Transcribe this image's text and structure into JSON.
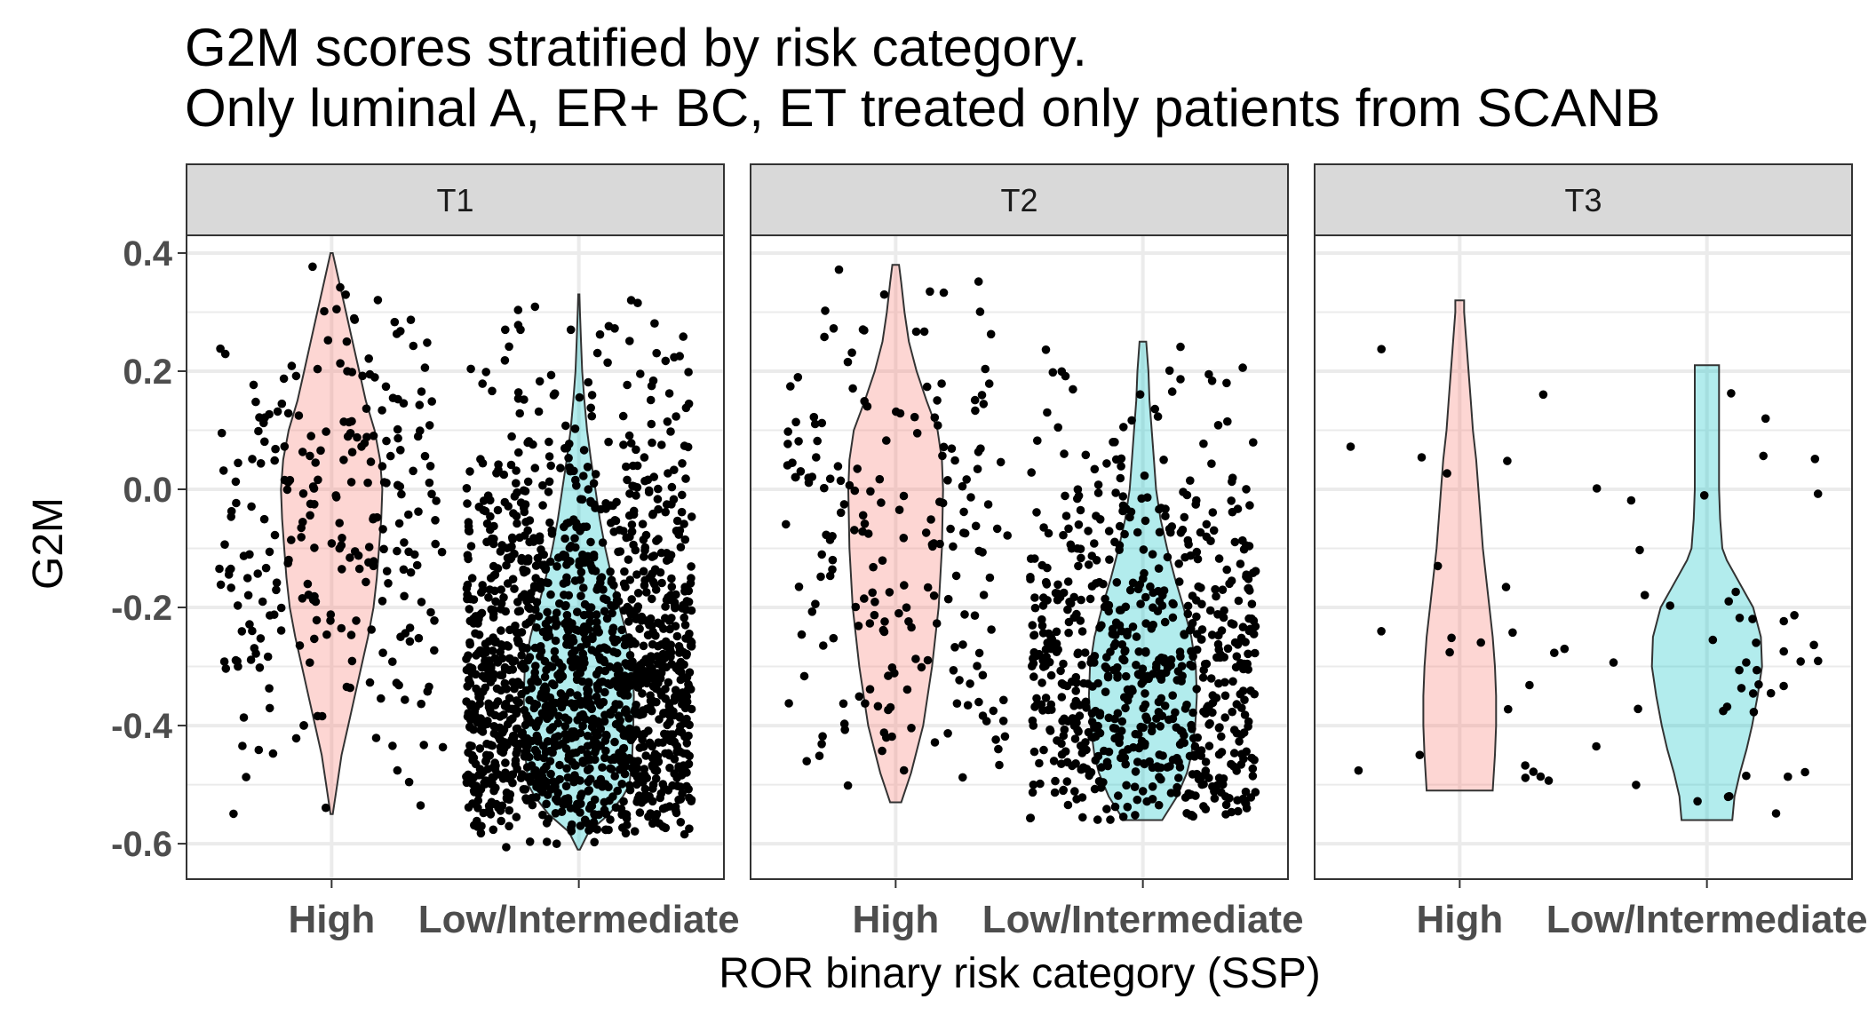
{
  "chart_data": {
    "type": "violin",
    "title_lines": [
      "G2M scores stratified by risk category.",
      "Only luminal A, ER+ BC, ET treated only patients from SCANB"
    ],
    "xlabel": "ROR binary risk category (SSP)",
    "ylabel": "G2M",
    "ylim": [
      -0.66,
      0.43
    ],
    "y_ticks": [
      0.4,
      0.2,
      0.0,
      -0.2,
      -0.4,
      -0.6
    ],
    "y_tick_labels": [
      "0.4",
      "0.2",
      "0.0",
      "-0.2",
      "-0.4",
      "-0.6"
    ],
    "categories": [
      "High",
      "Low/Intermediate"
    ],
    "colors": {
      "High": "#f8766d",
      "Low/Intermediate": "#00bfc4"
    },
    "grid": true,
    "legend": "none",
    "facets": [
      {
        "label": "T1",
        "groups": [
          {
            "name": "High",
            "min": -0.55,
            "max": 0.4,
            "n_points": 260,
            "profile": [
              [
                -0.55,
                0.02
              ],
              [
                -0.5,
                0.1
              ],
              [
                -0.45,
                0.18
              ],
              [
                -0.4,
                0.3
              ],
              [
                -0.35,
                0.42
              ],
              [
                -0.3,
                0.54
              ],
              [
                -0.25,
                0.66
              ],
              [
                -0.2,
                0.76
              ],
              [
                -0.15,
                0.82
              ],
              [
                -0.1,
                0.86
              ],
              [
                -0.05,
                0.9
              ],
              [
                0.0,
                0.92
              ],
              [
                0.05,
                0.88
              ],
              [
                0.1,
                0.78
              ],
              [
                0.15,
                0.62
              ],
              [
                0.2,
                0.5
              ],
              [
                0.25,
                0.38
              ],
              [
                0.3,
                0.26
              ],
              [
                0.35,
                0.14
              ],
              [
                0.4,
                0.02
              ]
            ]
          },
          {
            "name": "Low/Intermediate",
            "min": -0.61,
            "max": 0.33,
            "n_points": 1500,
            "profile": [
              [
                -0.61,
                0.02
              ],
              [
                -0.58,
                0.18
              ],
              [
                -0.55,
                0.55
              ],
              [
                -0.52,
                0.8
              ],
              [
                -0.5,
                0.92
              ],
              [
                -0.45,
                0.97
              ],
              [
                -0.4,
                0.99
              ],
              [
                -0.35,
                1.0
              ],
              [
                -0.3,
                0.98
              ],
              [
                -0.25,
                0.88
              ],
              [
                -0.2,
                0.74
              ],
              [
                -0.15,
                0.6
              ],
              [
                -0.1,
                0.48
              ],
              [
                -0.05,
                0.38
              ],
              [
                0.0,
                0.3
              ],
              [
                0.05,
                0.22
              ],
              [
                0.1,
                0.15
              ],
              [
                0.15,
                0.1
              ],
              [
                0.2,
                0.06
              ],
              [
                0.25,
                0.04
              ],
              [
                0.3,
                0.02
              ],
              [
                0.33,
                0.01
              ]
            ]
          }
        ]
      },
      {
        "label": "T2",
        "groups": [
          {
            "name": "High",
            "min": -0.53,
            "max": 0.38,
            "n_points": 200,
            "profile": [
              [
                -0.53,
                0.1
              ],
              [
                -0.48,
                0.28
              ],
              [
                -0.4,
                0.5
              ],
              [
                -0.3,
                0.66
              ],
              [
                -0.2,
                0.78
              ],
              [
                -0.1,
                0.84
              ],
              [
                0.0,
                0.86
              ],
              [
                0.05,
                0.84
              ],
              [
                0.1,
                0.76
              ],
              [
                0.15,
                0.56
              ],
              [
                0.2,
                0.38
              ],
              [
                0.25,
                0.24
              ],
              [
                0.3,
                0.16
              ],
              [
                0.35,
                0.1
              ],
              [
                0.38,
                0.06
              ]
            ]
          },
          {
            "name": "Low/Intermediate",
            "min": -0.56,
            "max": 0.25,
            "n_points": 700,
            "profile": [
              [
                -0.56,
                0.35
              ],
              [
                -0.52,
                0.62
              ],
              [
                -0.48,
                0.8
              ],
              [
                -0.45,
                0.88
              ],
              [
                -0.4,
                0.95
              ],
              [
                -0.35,
                0.98
              ],
              [
                -0.3,
                0.96
              ],
              [
                -0.25,
                0.88
              ],
              [
                -0.2,
                0.74
              ],
              [
                -0.15,
                0.58
              ],
              [
                -0.1,
                0.44
              ],
              [
                -0.05,
                0.32
              ],
              [
                0.0,
                0.24
              ],
              [
                0.05,
                0.2
              ],
              [
                0.1,
                0.16
              ],
              [
                0.15,
                0.12
              ],
              [
                0.2,
                0.1
              ],
              [
                0.25,
                0.06
              ]
            ]
          }
        ]
      },
      {
        "label": "T3",
        "groups": [
          {
            "name": "High",
            "min": -0.51,
            "max": 0.32,
            "n_points": 24,
            "profile": [
              [
                -0.51,
                0.6
              ],
              [
                -0.45,
                0.64
              ],
              [
                -0.4,
                0.66
              ],
              [
                -0.35,
                0.66
              ],
              [
                -0.3,
                0.64
              ],
              [
                -0.25,
                0.6
              ],
              [
                -0.2,
                0.54
              ],
              [
                -0.15,
                0.48
              ],
              [
                -0.1,
                0.42
              ],
              [
                -0.05,
                0.38
              ],
              [
                0.0,
                0.34
              ],
              [
                0.05,
                0.3
              ],
              [
                0.1,
                0.24
              ],
              [
                0.15,
                0.2
              ],
              [
                0.2,
                0.16
              ],
              [
                0.25,
                0.12
              ],
              [
                0.3,
                0.08
              ],
              [
                0.32,
                0.08
              ]
            ]
          },
          {
            "name": "Low/Intermediate",
            "min": -0.56,
            "max": 0.21,
            "n_points": 45,
            "profile": [
              [
                -0.56,
                0.46
              ],
              [
                -0.52,
                0.5
              ],
              [
                -0.48,
                0.6
              ],
              [
                -0.44,
                0.72
              ],
              [
                -0.4,
                0.82
              ],
              [
                -0.35,
                0.92
              ],
              [
                -0.3,
                1.0
              ],
              [
                -0.25,
                0.98
              ],
              [
                -0.2,
                0.84
              ],
              [
                -0.15,
                0.54
              ],
              [
                -0.12,
                0.36
              ],
              [
                -0.1,
                0.28
              ],
              [
                -0.05,
                0.24
              ],
              [
                0.0,
                0.22
              ],
              [
                0.05,
                0.22
              ],
              [
                0.1,
                0.22
              ],
              [
                0.15,
                0.22
              ],
              [
                0.21,
                0.22
              ]
            ]
          }
        ]
      }
    ]
  }
}
